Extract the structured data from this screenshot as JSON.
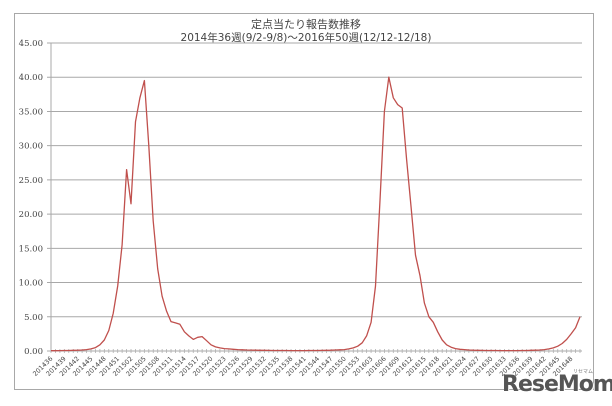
{
  "chart_data": {
    "type": "line",
    "title": "定点当たり報告数推移",
    "subtitle": "2014年36週(9/2-9/8)～2016年50週(12/12-12/18)",
    "xlabel": "",
    "ylabel": "",
    "ylim": [
      0,
      45
    ],
    "yticks": [
      "0.00",
      "5.00",
      "10.00",
      "15.00",
      "20.00",
      "25.00",
      "30.00",
      "35.00",
      "40.00",
      "45.00"
    ],
    "grid": true,
    "legend": null,
    "line_color": "#c0504d",
    "xtick_labels": [
      "201436",
      "201439",
      "201442",
      "201445",
      "201448",
      "201451",
      "201502",
      "201505",
      "201508",
      "201511",
      "201514",
      "201517",
      "201520",
      "201523",
      "201526",
      "201529",
      "201532",
      "201535",
      "201538",
      "201541",
      "201544",
      "201547",
      "201550",
      "201553",
      "201603",
      "201606",
      "201609",
      "201612",
      "201615",
      "201618",
      "201621",
      "201624",
      "201627",
      "201630",
      "201633",
      "201636",
      "201639",
      "201642",
      "201645",
      "201648"
    ],
    "series": [
      {
        "name": "定点当たり報告数",
        "values": [
          0.05,
          0.05,
          0.06,
          0.07,
          0.08,
          0.1,
          0.12,
          0.15,
          0.2,
          0.3,
          0.5,
          0.9,
          1.6,
          3.0,
          5.5,
          9.5,
          15.5,
          26.5,
          21.5,
          33.5,
          37.0,
          39.5,
          30.0,
          19.0,
          12.0,
          8.0,
          5.8,
          4.3,
          4.1,
          3.9,
          2.8,
          2.2,
          1.7,
          2.0,
          2.1,
          1.5,
          0.9,
          0.6,
          0.45,
          0.35,
          0.3,
          0.25,
          0.2,
          0.18,
          0.15,
          0.13,
          0.12,
          0.1,
          0.1,
          0.09,
          0.08,
          0.08,
          0.07,
          0.07,
          0.06,
          0.06,
          0.06,
          0.06,
          0.07,
          0.07,
          0.08,
          0.09,
          0.1,
          0.12,
          0.14,
          0.17,
          0.2,
          0.3,
          0.45,
          0.7,
          1.2,
          2.2,
          4.2,
          9.5,
          22.0,
          35.0,
          40.0,
          37.0,
          36.0,
          35.5,
          28.0,
          21.0,
          14.0,
          11.0,
          7.0,
          5.0,
          4.2,
          2.8,
          1.6,
          0.9,
          0.55,
          0.35,
          0.25,
          0.2,
          0.15,
          0.12,
          0.1,
          0.09,
          0.08,
          0.07,
          0.07,
          0.06,
          0.06,
          0.06,
          0.06,
          0.06,
          0.07,
          0.08,
          0.1,
          0.12,
          0.15,
          0.2,
          0.3,
          0.45,
          0.7,
          1.1,
          1.7,
          2.5,
          3.4,
          5.0
        ]
      }
    ]
  },
  "branding": {
    "logo": "ReseMom",
    "logo_sub": "リセマム"
  }
}
